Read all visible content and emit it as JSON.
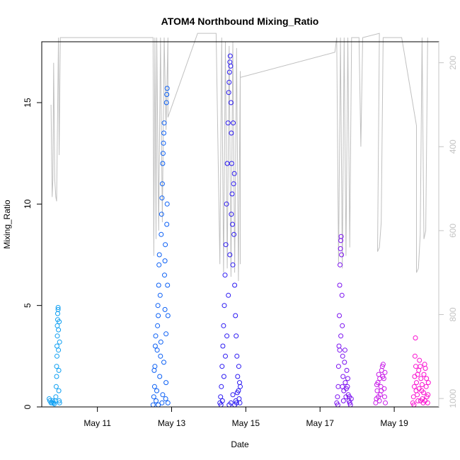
{
  "chart_data": {
    "type": "scatter",
    "title": "ATOM4 Northbound Mixing_Ratio",
    "xlabel": "Date",
    "ylabel": "Mixing_Ratio",
    "xlim": [
      9.5,
      20.2
    ],
    "ylim": [
      0,
      18
    ],
    "y2lim": [
      1020,
      150
    ],
    "x_ticks": [
      11,
      13,
      15,
      17,
      19
    ],
    "x_tick_labels": [
      "May 11",
      "May 13",
      "May 15",
      "May 17",
      "May 19"
    ],
    "y_ticks": [
      0,
      5,
      10,
      15
    ],
    "y_tick_labels": [
      "0",
      "5",
      "10",
      "15"
    ],
    "y2_ticks": [
      200,
      400,
      600,
      800,
      1000
    ],
    "y2_tick_labels": [
      "200",
      "400",
      "600",
      "800",
      "1000"
    ],
    "grid": false,
    "legend": "none",
    "colors": {
      "pressure_line": "#c0c0c0",
      "right_axis": "#c4c4c4",
      "axis": "#000000"
    },
    "secondary_axis_series": {
      "kind": "line",
      "points": [
        [
          9.75,
          300
        ],
        [
          9.78,
          520
        ],
        [
          9.8,
          480
        ],
        [
          9.82,
          200
        ],
        [
          9.85,
          480
        ],
        [
          9.88,
          520
        ],
        [
          9.9,
          530
        ],
        [
          9.95,
          140
        ],
        [
          9.97,
          420
        ],
        [
          10.0,
          140
        ],
        [
          12.5,
          140
        ],
        [
          12.52,
          660
        ],
        [
          12.55,
          140
        ],
        [
          12.58,
          620
        ],
        [
          12.6,
          140
        ],
        [
          12.65,
          600
        ],
        [
          12.7,
          140
        ],
        [
          12.75,
          580
        ],
        [
          12.8,
          140
        ],
        [
          12.85,
          360
        ],
        [
          12.9,
          140
        ],
        [
          12.9,
          330
        ],
        [
          13.7,
          130
        ],
        [
          14.2,
          130
        ],
        [
          14.3,
          680
        ],
        [
          14.35,
          140
        ],
        [
          14.4,
          700
        ],
        [
          14.45,
          150
        ],
        [
          14.5,
          690
        ],
        [
          14.55,
          160
        ],
        [
          14.6,
          710
        ],
        [
          14.65,
          150
        ],
        [
          14.7,
          700
        ],
        [
          14.75,
          165
        ],
        [
          14.8,
          720
        ],
        [
          14.85,
          220
        ],
        [
          14.85,
          680
        ],
        [
          14.85,
          235
        ],
        [
          17.4,
          175
        ],
        [
          17.45,
          140
        ],
        [
          17.5,
          680
        ],
        [
          17.55,
          140
        ],
        [
          17.6,
          690
        ],
        [
          17.65,
          140
        ],
        [
          17.7,
          660
        ],
        [
          17.75,
          140
        ],
        [
          17.8,
          640
        ],
        [
          17.85,
          140
        ],
        [
          18.05,
          140
        ],
        [
          18.1,
          400
        ],
        [
          18.15,
          140
        ],
        [
          18.6,
          130
        ],
        [
          18.55,
          650
        ],
        [
          18.6,
          640
        ],
        [
          18.65,
          580
        ],
        [
          18.7,
          140
        ],
        [
          19.2,
          140
        ],
        [
          19.6,
          350
        ],
        [
          19.6,
          700
        ],
        [
          19.65,
          690
        ],
        [
          19.7,
          610
        ],
        [
          19.75,
          140
        ],
        [
          19.8,
          620
        ],
        [
          19.85,
          600
        ],
        [
          19.9,
          140
        ]
      ]
    },
    "series": [
      {
        "color": "#0d9ff2",
        "points": [
          [
            9.7,
            0.4
          ],
          [
            9.72,
            0.3
          ],
          [
            9.75,
            0.2
          ],
          [
            9.78,
            0.2
          ],
          [
            9.8,
            0.3
          ],
          [
            9.82,
            0.2
          ],
          [
            9.84,
            0.15
          ],
          [
            9.86,
            0.3
          ],
          [
            9.88,
            0.5
          ],
          [
            9.89,
            1.0
          ],
          [
            9.9,
            1.5
          ],
          [
            9.9,
            2.0
          ],
          [
            9.91,
            2.5
          ],
          [
            9.91,
            3.0
          ],
          [
            9.92,
            3.5
          ],
          [
            9.92,
            4.0
          ],
          [
            9.93,
            4.3
          ],
          [
            9.93,
            4.6
          ],
          [
            9.94,
            4.8
          ],
          [
            9.94,
            4.9
          ],
          [
            9.95,
            3.8
          ],
          [
            9.95,
            2.8
          ],
          [
            9.96,
            1.8
          ],
          [
            9.96,
            0.8
          ],
          [
            9.97,
            0.3
          ],
          [
            9.97,
            4.2
          ],
          [
            9.98,
            3.2
          ],
          [
            9.98,
            0.2
          ]
        ]
      },
      {
        "color": "#0a5ff5",
        "points": [
          [
            12.5,
            0.1
          ],
          [
            12.52,
            0.5
          ],
          [
            12.54,
            1.0
          ],
          [
            12.55,
            2.0
          ],
          [
            12.56,
            3.0
          ],
          [
            12.57,
            3.5
          ],
          [
            12.58,
            0.3
          ],
          [
            12.6,
            0.8
          ],
          [
            12.62,
            4.0
          ],
          [
            12.63,
            5.0
          ],
          [
            12.64,
            4.5
          ],
          [
            12.65,
            6.0
          ],
          [
            12.66,
            7.0
          ],
          [
            12.67,
            7.5
          ],
          [
            12.68,
            1.5
          ],
          [
            12.7,
            2.5
          ],
          [
            12.72,
            8.5
          ],
          [
            12.73,
            9.5
          ],
          [
            12.74,
            10.3
          ],
          [
            12.75,
            11.0
          ],
          [
            12.76,
            12.0
          ],
          [
            12.77,
            12.5
          ],
          [
            12.78,
            13.0
          ],
          [
            12.79,
            13.5
          ],
          [
            12.8,
            14.0
          ],
          [
            12.81,
            6.5
          ],
          [
            12.82,
            7.2
          ],
          [
            12.83,
            8.0
          ],
          [
            12.84,
            0.4
          ],
          [
            12.85,
            1.2
          ],
          [
            12.86,
            15.0
          ],
          [
            12.87,
            15.4
          ],
          [
            12.88,
            15.7
          ],
          [
            12.89,
            6.0
          ],
          [
            12.9,
            4.5
          ],
          [
            12.9,
            0.2
          ],
          [
            12.53,
            1.8
          ],
          [
            12.61,
            2.8
          ],
          [
            12.69,
            5.5
          ],
          [
            12.71,
            3.2
          ],
          [
            12.76,
            0.6
          ],
          [
            12.79,
            2.2
          ],
          [
            12.82,
            4.8
          ],
          [
            12.85,
            3.6
          ],
          [
            12.87,
            9.0
          ],
          [
            12.88,
            10.0
          ],
          [
            12.64,
            0.1
          ],
          [
            12.74,
            0.2
          ]
        ]
      },
      {
        "color": "#2a18f2",
        "points": [
          [
            14.3,
            0.2
          ],
          [
            14.32,
            0.5
          ],
          [
            14.34,
            1.0
          ],
          [
            14.36,
            2.0
          ],
          [
            14.38,
            3.0
          ],
          [
            14.4,
            4.0
          ],
          [
            14.42,
            5.0
          ],
          [
            14.44,
            6.5
          ],
          [
            14.46,
            8.0
          ],
          [
            14.48,
            10.0
          ],
          [
            14.5,
            12.0
          ],
          [
            14.52,
            14.0
          ],
          [
            14.54,
            15.5
          ],
          [
            14.55,
            16.0
          ],
          [
            14.56,
            16.5
          ],
          [
            14.57,
            17.0
          ],
          [
            14.58,
            17.3
          ],
          [
            14.59,
            16.8
          ],
          [
            14.6,
            15.0
          ],
          [
            14.61,
            13.5
          ],
          [
            14.62,
            12.0
          ],
          [
            14.63,
            10.5
          ],
          [
            14.64,
            9.0
          ],
          [
            14.65,
            7.0
          ],
          [
            14.66,
            14.0
          ],
          [
            14.67,
            11.0
          ],
          [
            14.68,
            8.5
          ],
          [
            14.7,
            6.0
          ],
          [
            14.72,
            4.5
          ],
          [
            14.74,
            3.5
          ],
          [
            14.76,
            2.5
          ],
          [
            14.78,
            1.5
          ],
          [
            14.8,
            0.8
          ],
          [
            14.82,
            0.4
          ],
          [
            14.84,
            0.2
          ],
          [
            14.85,
            1.0
          ],
          [
            14.33,
            0.1
          ],
          [
            14.37,
            0.3
          ],
          [
            14.41,
            1.5
          ],
          [
            14.45,
            2.5
          ],
          [
            14.49,
            3.5
          ],
          [
            14.53,
            5.5
          ],
          [
            14.57,
            7.5
          ],
          [
            14.61,
            9.5
          ],
          [
            14.65,
            0.6
          ],
          [
            14.69,
            11.5
          ],
          [
            14.73,
            0.3
          ],
          [
            14.77,
            0.7
          ],
          [
            14.81,
            2.0
          ],
          [
            14.83,
            1.2
          ],
          [
            14.55,
            0.1
          ],
          [
            14.6,
            0.2
          ],
          [
            14.7,
            0.1
          ],
          [
            14.75,
            0.2
          ]
        ]
      },
      {
        "color": "#7b10f0",
        "points": [
          [
            17.45,
            0.2
          ],
          [
            17.47,
            0.5
          ],
          [
            17.49,
            1.0
          ],
          [
            17.5,
            2.0
          ],
          [
            17.51,
            3.0
          ],
          [
            17.52,
            4.5
          ],
          [
            17.53,
            6.0
          ],
          [
            17.54,
            7.0
          ],
          [
            17.55,
            7.8
          ],
          [
            17.56,
            8.2
          ],
          [
            17.57,
            8.4
          ],
          [
            17.58,
            7.5
          ],
          [
            17.59,
            5.5
          ],
          [
            17.6,
            4.0
          ],
          [
            17.61,
            2.5
          ],
          [
            17.62,
            1.5
          ],
          [
            17.64,
            0.8
          ],
          [
            17.66,
            2.2
          ],
          [
            17.68,
            1.2
          ],
          [
            17.7,
            0.5
          ],
          [
            17.72,
            1.8
          ],
          [
            17.74,
            1.0
          ],
          [
            17.76,
            0.6
          ],
          [
            17.78,
            0.3
          ],
          [
            17.8,
            0.2
          ],
          [
            17.82,
            0.1
          ],
          [
            17.84,
            0.4
          ],
          [
            17.48,
            0.1
          ],
          [
            17.53,
            2.8
          ],
          [
            17.56,
            3.5
          ],
          [
            17.6,
            1.0
          ],
          [
            17.63,
            0.3
          ],
          [
            17.67,
            2.8
          ],
          [
            17.71,
            0.9
          ],
          [
            17.75,
            1.4
          ],
          [
            17.79,
            0.5
          ]
        ]
      },
      {
        "color": "#c81ae8",
        "points": [
          [
            18.5,
            0.2
          ],
          [
            18.52,
            0.4
          ],
          [
            18.54,
            0.8
          ],
          [
            18.56,
            1.2
          ],
          [
            18.58,
            1.6
          ],
          [
            18.6,
            0.3
          ],
          [
            18.62,
            0.6
          ],
          [
            18.64,
            1.0
          ],
          [
            18.66,
            1.8
          ],
          [
            18.68,
            2.0
          ],
          [
            18.7,
            2.1
          ],
          [
            18.72,
            1.4
          ],
          [
            18.74,
            0.5
          ],
          [
            18.76,
            0.2
          ],
          [
            18.53,
            1.1
          ],
          [
            18.57,
            0.5
          ],
          [
            18.61,
            1.4
          ],
          [
            18.65,
            0.8
          ],
          [
            18.69,
            1.5
          ],
          [
            18.73,
            0.9
          ],
          [
            18.75,
            1.7
          ]
        ]
      },
      {
        "color": "#fa10d0",
        "points": [
          [
            19.5,
            0.2
          ],
          [
            19.52,
            0.5
          ],
          [
            19.54,
            1.0
          ],
          [
            19.55,
            1.5
          ],
          [
            19.56,
            2.5
          ],
          [
            19.57,
            3.4
          ],
          [
            19.58,
            2.0
          ],
          [
            19.6,
            1.2
          ],
          [
            19.62,
            0.6
          ],
          [
            19.64,
            0.3
          ],
          [
            19.66,
            1.8
          ],
          [
            19.68,
            2.3
          ],
          [
            19.7,
            2.0
          ],
          [
            19.72,
            1.4
          ],
          [
            19.74,
            0.8
          ],
          [
            19.76,
            0.4
          ],
          [
            19.78,
            0.2
          ],
          [
            19.8,
            1.6
          ],
          [
            19.82,
            2.1
          ],
          [
            19.84,
            1.9
          ],
          [
            19.86,
            1.0
          ],
          [
            19.88,
            0.5
          ],
          [
            19.9,
            0.2
          ],
          [
            19.92,
            1.2
          ],
          [
            19.53,
            0.1
          ],
          [
            19.59,
            0.8
          ],
          [
            19.63,
            1.6
          ],
          [
            19.67,
            0.9
          ],
          [
            19.71,
            0.3
          ],
          [
            19.75,
            1.1
          ],
          [
            19.79,
            0.7
          ],
          [
            19.83,
            0.3
          ],
          [
            19.87,
            1.4
          ],
          [
            19.91,
            0.6
          ]
        ]
      }
    ]
  }
}
